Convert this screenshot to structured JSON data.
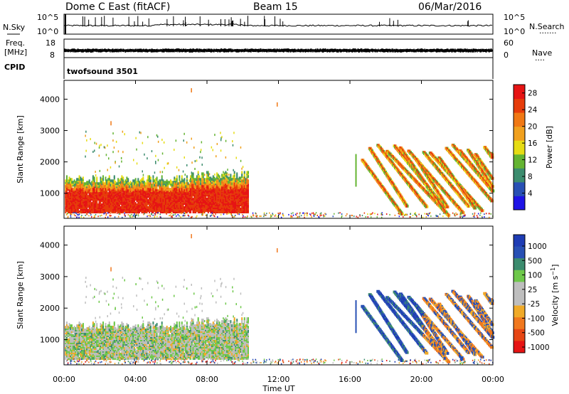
{
  "header": {
    "radar": "Dome C East (fitACF)",
    "beam": "Beam 15",
    "date": "06/Mar/2016"
  },
  "status_panel": {
    "left_labels": {
      "nsky": "N.Sky",
      "freq_line1": "Freq.",
      "freq_line2": "[MHz]",
      "cpid": "CPID"
    },
    "right_labels": {
      "nsearch": "N.Search",
      "nsearch_dots": "·······",
      "nave": "Nave",
      "nave_dots": "····"
    },
    "noise_axis": {
      "top": "10^5",
      "bottom": "10^0"
    },
    "freq_axis": {
      "top": "18",
      "bottom": "8"
    },
    "nave_axis": {
      "top": "60",
      "bottom": "0"
    },
    "cpid_text": "twofsound 3501"
  },
  "colors": {
    "power_scale": [
      "#1e14e6",
      "#2850b4",
      "#3c8c6e",
      "#64b432",
      "#e6dc14",
      "#f0a01e",
      "#f07814",
      "#e63c0a",
      "#e61414"
    ],
    "velocity_scale": [
      "#e61414",
      "#e64614",
      "#f0781e",
      "#f0aa28",
      "#bebebe",
      "#bebebe",
      "#6ec84a",
      "#3c8c6e",
      "#2850b4",
      "#1e3cb4"
    ]
  },
  "chart_data": [
    {
      "type": "heatmap",
      "name": "power",
      "ylabel": "Slant Range [km]",
      "yticks": [
        1000,
        2000,
        3000,
        4000
      ],
      "ylim": [
        200,
        4600
      ],
      "xlim": [
        0,
        24
      ],
      "colorbar_label": "Power [dB]",
      "colorbar_ticks": [
        "4",
        "8",
        "12",
        "16",
        "20",
        "24",
        "28"
      ],
      "colorbar_range": [
        0,
        30
      ],
      "regions": [
        {
          "x": [
            0,
            10.3
          ],
          "range_km": [
            500,
            1600
          ],
          "level": "high"
        },
        {
          "x": [
            16.3,
            23.8
          ],
          "range_km": [
            300,
            2600
          ],
          "level": "streaks"
        }
      ]
    },
    {
      "type": "heatmap",
      "name": "velocity",
      "ylabel": "Slant Range [km]",
      "yticks": [
        1000,
        2000,
        3000,
        4000
      ],
      "ylim": [
        200,
        4600
      ],
      "xlim": [
        0,
        24
      ],
      "colorbar_label": "Velocity [m s^-1]",
      "colorbar_ticks": [
        "1000",
        "500",
        "100",
        "25",
        "-25",
        "-100",
        "-500",
        "-1000"
      ],
      "regions": [
        {
          "x": [
            0,
            10.3
          ],
          "range_km": [
            500,
            1600
          ],
          "level": "mixed"
        },
        {
          "x": [
            16.3,
            23.8
          ],
          "range_km": [
            300,
            2600
          ],
          "level": "streaks"
        }
      ]
    }
  ],
  "xaxis": {
    "ticks": [
      "00:00",
      "04:00",
      "08:00",
      "12:00",
      "16:00",
      "20:00",
      "00:00"
    ],
    "label": "Time UT"
  }
}
